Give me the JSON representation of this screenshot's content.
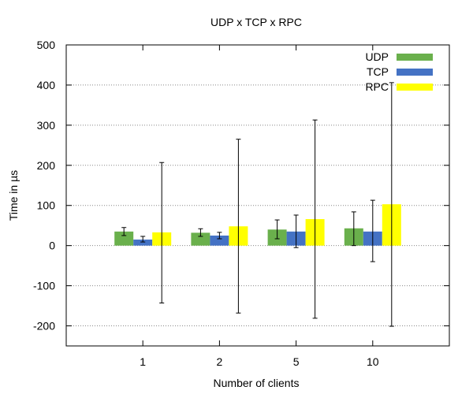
{
  "chart_data": {
    "type": "bar",
    "title": "UDP x TCP x RPC",
    "xlabel": "Number of clients",
    "ylabel": "Time in µs",
    "categories": [
      "1",
      "2",
      "5",
      "10"
    ],
    "ylim": [
      -250,
      500
    ],
    "yticks": [
      -200,
      -100,
      0,
      100,
      200,
      300,
      400,
      500
    ],
    "grid": true,
    "legend_position": "top-right",
    "series": [
      {
        "name": "UDP",
        "color": "#6ab04c",
        "values": [
          35,
          32,
          40,
          43
        ],
        "error": [
          [
            25,
            45
          ],
          [
            23,
            42
          ],
          [
            17,
            64
          ],
          [
            0,
            84
          ]
        ]
      },
      {
        "name": "TCP",
        "color": "#4472c4",
        "values": [
          15,
          25,
          35,
          35
        ],
        "error": [
          [
            9,
            23
          ],
          [
            17,
            33
          ],
          [
            -5,
            76
          ],
          [
            -40,
            113
          ]
        ]
      },
      {
        "name": "RPC",
        "color": "#ffff00",
        "values": [
          33,
          48,
          66,
          103
        ],
        "error": [
          [
            -143,
            207
          ],
          [
            -168,
            265
          ],
          [
            -181,
            313
          ],
          [
            -201,
            406
          ]
        ]
      }
    ]
  }
}
